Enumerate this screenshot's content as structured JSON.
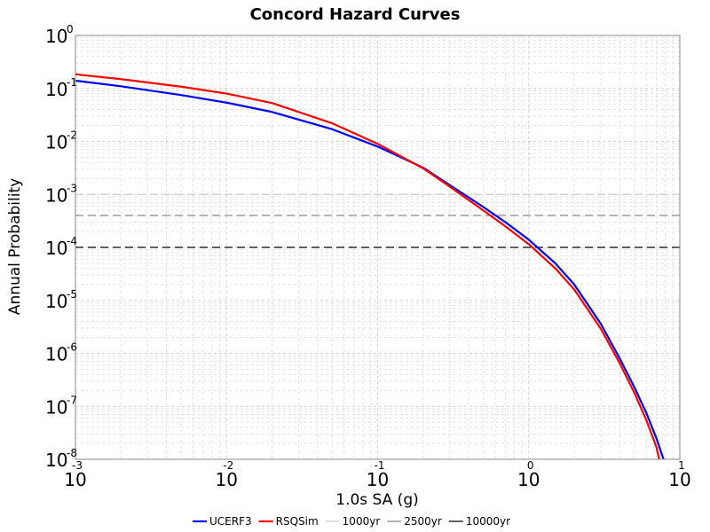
{
  "chart_data": {
    "type": "line",
    "title": "Concord Hazard Curves",
    "xlabel": "1.0s SA (g)",
    "ylabel": "Annual Probability",
    "xscale": "log",
    "yscale": "log",
    "xlim": [
      0.001,
      10
    ],
    "ylim": [
      1e-08,
      1
    ],
    "grid": true,
    "legend_position": "bottom",
    "x_ticks": [
      {
        "base": "10",
        "exp": "-3"
      },
      {
        "base": "10",
        "exp": "-2"
      },
      {
        "base": "10",
        "exp": "-1"
      },
      {
        "base": "10",
        "exp": "0"
      },
      {
        "base": "10",
        "exp": "1"
      }
    ],
    "y_ticks": [
      {
        "base": "10",
        "exp": "0"
      },
      {
        "base": "10",
        "exp": "-1"
      },
      {
        "base": "10",
        "exp": "-2"
      },
      {
        "base": "10",
        "exp": "-3"
      },
      {
        "base": "10",
        "exp": "-4"
      },
      {
        "base": "10",
        "exp": "-5"
      },
      {
        "base": "10",
        "exp": "-6"
      },
      {
        "base": "10",
        "exp": "-7"
      },
      {
        "base": "10",
        "exp": "-8"
      }
    ],
    "series": [
      {
        "name": "UCERF3",
        "color": "#0000ff",
        "x": [
          0.001,
          0.002,
          0.005,
          0.01,
          0.02,
          0.05,
          0.1,
          0.2,
          0.3,
          0.5,
          0.7,
          1.0,
          1.5,
          2.0,
          3.0,
          4.0,
          5.0,
          6.0,
          7.0,
          7.8
        ],
        "y": [
          0.14,
          0.11,
          0.075,
          0.054,
          0.036,
          0.017,
          0.008,
          0.0032,
          0.0015,
          0.00058,
          0.0003,
          0.00014,
          5e-05,
          2e-05,
          3.6e-06,
          8e-07,
          2.3e-07,
          7.5e-08,
          2.5e-08,
          1e-08
        ]
      },
      {
        "name": "RSQSim",
        "color": "#ff0000",
        "x": [
          0.001,
          0.002,
          0.005,
          0.01,
          0.02,
          0.05,
          0.1,
          0.2,
          0.3,
          0.5,
          0.7,
          1.0,
          1.5,
          2.0,
          3.0,
          4.0,
          5.0,
          6.0,
          7.0,
          7.3
        ],
        "y": [
          0.185,
          0.15,
          0.108,
          0.08,
          0.053,
          0.022,
          0.009,
          0.0031,
          0.0014,
          0.0005,
          0.00025,
          0.000115,
          4e-05,
          1.6e-05,
          2.9e-06,
          6.5e-07,
          1.8e-07,
          5.5e-08,
          1.7e-08,
          1e-08
        ]
      }
    ],
    "reference_lines": [
      {
        "name": "1000yr",
        "y": 0.001,
        "color": "#cccccc"
      },
      {
        "name": "2500yr",
        "y": 0.0004,
        "color": "#888888"
      },
      {
        "name": "10000yr",
        "y": 0.0001,
        "color": "#000000"
      }
    ]
  }
}
